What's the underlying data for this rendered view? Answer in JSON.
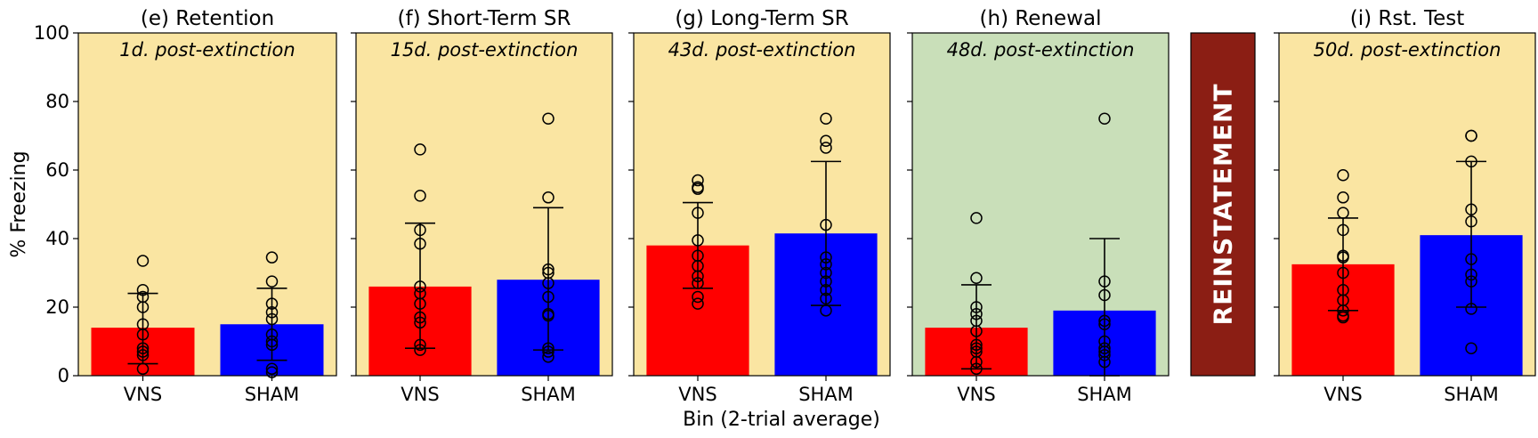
{
  "chart_data": {
    "type": "bar",
    "ylabel": "% Freezing",
    "xlabel": "Bin (2-trial average)",
    "ylim": [
      0,
      100
    ],
    "yticks": [
      0,
      20,
      40,
      60,
      80,
      100
    ],
    "categories": [
      "VNS",
      "SHAM"
    ],
    "colors": {
      "VNS": "#ff0000",
      "SHAM": "#0000ff"
    },
    "divider_label": "REINSTATEMENT",
    "divider_color": "#8b1e14",
    "panels": [
      {
        "title": "(e) Retention",
        "subtitle": "1d. post-extinction",
        "background": "#fae5a2",
        "bars": [
          {
            "category": "VNS",
            "mean": 14,
            "err": [
              3.5,
              24
            ],
            "points": [
              33.5,
              25,
              23,
              20,
              15,
              12,
              8,
              7,
              6,
              2
            ]
          },
          {
            "category": "SHAM",
            "mean": 15,
            "err": [
              4.5,
              25.5
            ],
            "points": [
              34.5,
              27.5,
              21,
              18.5,
              16.5,
              12,
              10,
              9,
              2,
              1
            ]
          }
        ]
      },
      {
        "title": "(f) Short-Term SR",
        "subtitle": "15d. post-extinction",
        "background": "#fae5a2",
        "bars": [
          {
            "category": "VNS",
            "mean": 26,
            "err": [
              8,
              44.5
            ],
            "points": [
              66,
              52.5,
              42.5,
              38.5,
              26,
              24,
              21,
              17,
              15.5,
              9,
              7.5
            ]
          },
          {
            "category": "SHAM",
            "mean": 28,
            "err": [
              7.5,
              49
            ],
            "points": [
              75,
              52,
              31,
              30,
              27,
              23,
              18,
              17.5,
              8,
              7,
              5.5
            ]
          }
        ]
      },
      {
        "title": "(g) Long-Term SR",
        "subtitle": "43d. post-extinction",
        "background": "#fae5a2",
        "bars": [
          {
            "category": "VNS",
            "mean": 38,
            "err": [
              25.5,
              50.5
            ],
            "points": [
              57,
              55,
              54.5,
              47.5,
              39.5,
              35,
              32,
              29,
              27,
              23,
              21
            ]
          },
          {
            "category": "SHAM",
            "mean": 41.5,
            "err": [
              20.5,
              62.5
            ],
            "points": [
              75,
              68.5,
              66.5,
              44,
              34.5,
              32.5,
              30,
              27.5,
              25,
              22.5,
              19
            ]
          }
        ]
      },
      {
        "title": "(h) Renewal",
        "subtitle": "48d. post-extinction",
        "background": "#c9dfb9",
        "bars": [
          {
            "category": "VNS",
            "mean": 14,
            "err": [
              2,
              26.5
            ],
            "points": [
              46,
              28.5,
              20,
              18,
              16,
              13,
              9,
              8,
              7,
              4,
              2
            ]
          },
          {
            "category": "SHAM",
            "mean": 19,
            "err": [
              0,
              40
            ],
            "points": [
              75,
              27.5,
              23.5,
              16,
              15,
              10,
              8,
              7,
              6,
              4
            ]
          }
        ]
      },
      {
        "title": "(i) Rst. Test",
        "subtitle": "50d. post-extinction",
        "background": "#fae5a2",
        "bars": [
          {
            "category": "VNS",
            "mean": 32.5,
            "err": [
              19,
              46
            ],
            "points": [
              58.5,
              52,
              47.5,
              42.5,
              35,
              34.5,
              30,
              25,
              22,
              19,
              17.5,
              17
            ]
          },
          {
            "category": "SHAM",
            "mean": 41,
            "err": [
              20,
              62.5
            ],
            "points": [
              70,
              70,
              62.5,
              48.5,
              45,
              34,
              29.5,
              27.5,
              19.5,
              8
            ]
          }
        ]
      }
    ]
  }
}
